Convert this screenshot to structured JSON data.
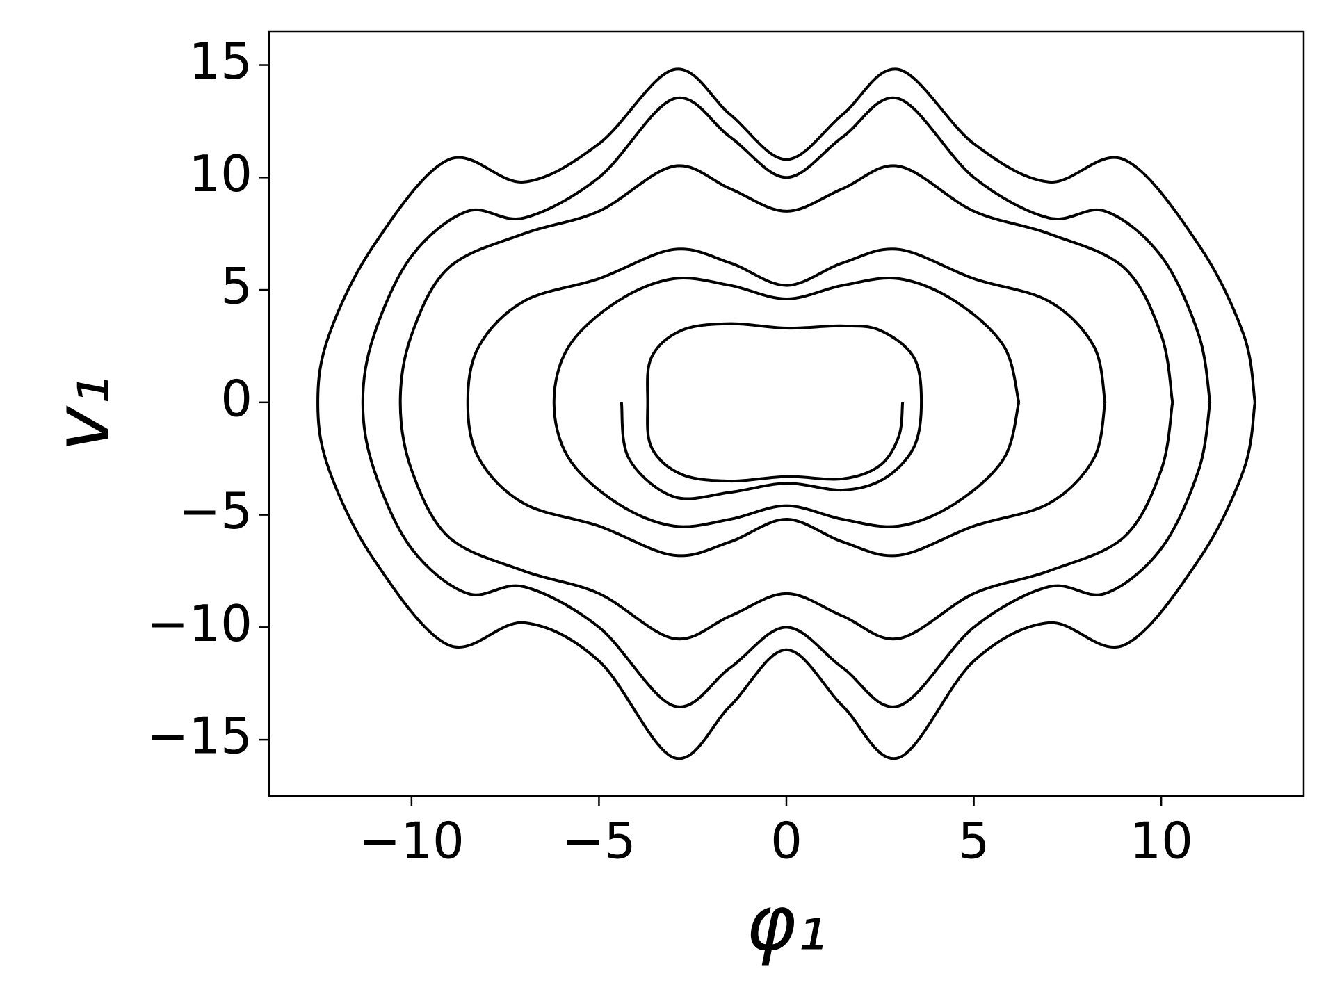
{
  "chart_data": {
    "type": "line",
    "x_label": "φ₁",
    "y_label": "v₁",
    "xlim": [
      -13.8,
      13.8
    ],
    "ylim": [
      -17.5,
      16.5
    ],
    "xticks": [
      {
        "value": -10,
        "label": "−10"
      },
      {
        "value": -5,
        "label": "−5"
      },
      0,
      5,
      10
    ],
    "yticks": [
      {
        "value": -15,
        "label": "−15"
      },
      {
        "value": -10,
        "label": "−10"
      },
      {
        "value": -5,
        "label": "−5"
      },
      0,
      5,
      10,
      15
    ],
    "grid": false,
    "series": [
      {
        "color": "#000000",
        "x": [
          3.1,
          3.0,
          2.5,
          1.5,
          0,
          -1.5,
          -2.8,
          -3.6,
          -3.7,
          -3.6,
          -2.8,
          -1.5,
          0,
          1.5,
          2.5,
          3.4,
          3.6,
          3.4,
          2.6,
          1.5,
          0,
          -1.5,
          -3,
          -4.2,
          -4.4
        ],
        "y": [
          0,
          -1.5,
          -2.8,
          -3.4,
          -3.3,
          -3.5,
          -3.2,
          -2,
          0,
          2,
          3.2,
          3.5,
          3.3,
          3.4,
          3.2,
          2,
          0,
          -2,
          -3.4,
          -3.9,
          -3.6,
          -4,
          -4.2,
          -2.5,
          0
        ]
      },
      {
        "color": "#000000",
        "x": [
          6.2,
          5.8,
          4.5,
          3,
          1.5,
          0,
          -1.5,
          -3,
          -4.5,
          -5.8,
          -6.2,
          -5.8,
          -4.5,
          -3,
          -1.5,
          0,
          1.5,
          3,
          4.5,
          5.8,
          6.2
        ],
        "y": [
          0,
          -2.5,
          -4.5,
          -5.5,
          -5.2,
          -4.6,
          -5.2,
          -5.5,
          -4.5,
          -2.5,
          0,
          2.5,
          4.5,
          5.5,
          5.2,
          4.6,
          5.2,
          5.5,
          4.5,
          2.5,
          0
        ]
      },
      {
        "color": "#000000",
        "x": [
          8.5,
          8.2,
          7,
          5,
          3,
          1.5,
          0,
          -1.5,
          -3,
          -5,
          -7,
          -8.2,
          -8.5,
          -8.2,
          -7,
          -5,
          -3,
          -1.5,
          0,
          1.5,
          3,
          5,
          7,
          8.2,
          8.5
        ],
        "y": [
          0,
          -2.5,
          -4.5,
          -5.5,
          -6.8,
          -6.2,
          -5.2,
          -6.2,
          -6.8,
          -5.5,
          -4.5,
          -2.5,
          0,
          2.5,
          4.5,
          5.5,
          6.8,
          6.2,
          5.2,
          6.2,
          6.8,
          5.5,
          4.5,
          2.5,
          0
        ]
      },
      {
        "color": "#000000",
        "x": [
          10.3,
          10,
          9,
          7,
          5,
          3,
          1.5,
          0,
          -1.5,
          -3,
          -5,
          -7,
          -9,
          -10,
          -10.3,
          -10,
          -9,
          -7,
          -5,
          -3,
          -1.5,
          0,
          1.5,
          3,
          5,
          7,
          9,
          10,
          10.3
        ],
        "y": [
          0,
          -3,
          -6,
          -7.5,
          -8.5,
          -10.5,
          -9.5,
          -8.5,
          -9.5,
          -10.5,
          -8.5,
          -7.5,
          -6,
          -3,
          0,
          3,
          6,
          7.5,
          8.5,
          10.5,
          9.5,
          8.5,
          9.5,
          10.5,
          8.5,
          7.5,
          6,
          3,
          0
        ]
      },
      {
        "color": "#000000",
        "x": [
          11.3,
          11,
          10,
          8.5,
          7,
          5,
          3,
          1.5,
          0,
          -1.5,
          -3,
          -5,
          -7,
          -8.5,
          -10,
          -11,
          -11.3,
          -11,
          -10,
          -8.5,
          -7,
          -5,
          -3,
          -1.5,
          0,
          1.5,
          3,
          5,
          7,
          8.5,
          10,
          11,
          11.3
        ],
        "y": [
          0,
          -3,
          -6.5,
          -8.5,
          -8.2,
          -10,
          -13.5,
          -11.8,
          -10,
          -11.8,
          -13.5,
          -10,
          -8.2,
          -8.5,
          -6.5,
          -3,
          0,
          3,
          6.5,
          8.5,
          8.2,
          10,
          13.5,
          11.8,
          10,
          11.8,
          13.5,
          10,
          8.2,
          8.5,
          6.5,
          3,
          0
        ]
      },
      {
        "color": "#000000",
        "x": [
          12.5,
          12.2,
          11,
          9,
          7,
          5,
          3,
          1.5,
          0,
          -1.5,
          -3,
          -5,
          -7,
          -9,
          -11,
          -12.2,
          -12.5,
          -12.2,
          -11,
          -9,
          -7,
          -5,
          -3,
          -1.5,
          0,
          1.5,
          3,
          5,
          7,
          9,
          11,
          12.2,
          12.5
        ],
        "y": [
          0,
          -3,
          -7,
          -10.8,
          -9.8,
          -11.5,
          -15.8,
          -13.5,
          -11,
          -13.5,
          -15.8,
          -11.5,
          -9.8,
          -10.8,
          -7,
          -3,
          0,
          3,
          7,
          10.8,
          9.8,
          11.5,
          14.8,
          12.8,
          10.8,
          12.8,
          14.8,
          11.5,
          9.8,
          10.8,
          7,
          3,
          0
        ]
      }
    ]
  }
}
